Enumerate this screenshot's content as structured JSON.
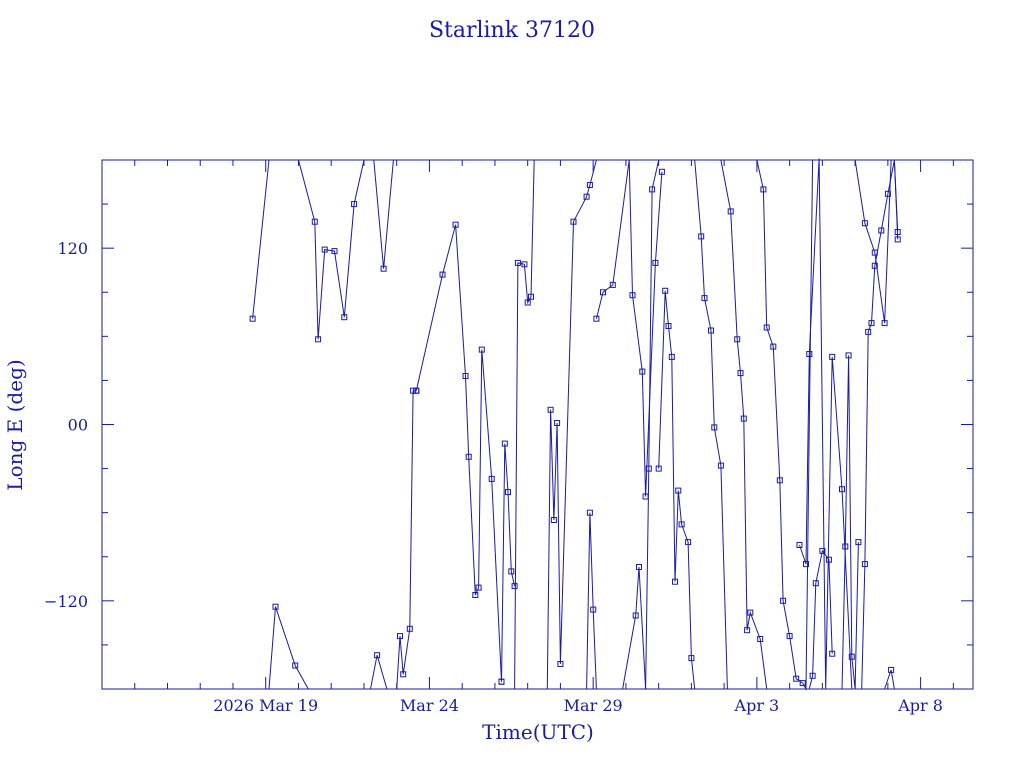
{
  "chart_data": {
    "type": "line",
    "title": "Starlink 37120",
    "xlabel": "Time(UTC)",
    "ylabel": "Long E (deg)",
    "x_unit": "days",
    "x_range": [
      14.0,
      40.6
    ],
    "ylim": [
      -180,
      180
    ],
    "y_ticks": [
      {
        "value": 120,
        "label": "120"
      },
      {
        "value": 0,
        "label": "00"
      },
      {
        "value": -120,
        "label": "−120"
      }
    ],
    "x_ticks": [
      {
        "value": 19,
        "label": "2026 Mar 19"
      },
      {
        "value": 24,
        "label": "Mar 24"
      },
      {
        "value": 29,
        "label": "Mar 29"
      },
      {
        "value": 34,
        "label": "Apr  3"
      },
      {
        "value": 39,
        "label": "Apr  8"
      }
    ],
    "line_color": "#1a1aa6",
    "series": [
      {
        "x": [
          18.6,
          19.1
        ],
        "y": [
          72,
          180
        ]
      },
      {
        "x": [
          19.1,
          19.3,
          19.9,
          20.3
        ],
        "y": [
          -180,
          -124,
          -164,
          -180
        ]
      },
      {
        "x": [
          20.0,
          20.5,
          20.6,
          20.8,
          21.1,
          21.4,
          21.7,
          22.0,
          22.3
        ],
        "y": [
          180,
          138,
          58,
          119,
          118,
          73,
          150,
          180,
          180
        ]
      },
      {
        "x": [
          22.3,
          22.6,
          22.9
        ],
        "y": [
          180,
          106,
          180
        ]
      },
      {
        "x": [
          22.2,
          22.4,
          22.7
        ],
        "y": [
          -180,
          -157,
          -180
        ]
      },
      {
        "x": [
          23.0,
          23.1,
          23.2,
          23.4,
          23.5,
          23.6
        ],
        "y": [
          -180,
          -144,
          -170,
          -139,
          23,
          23
        ]
      },
      {
        "x": [
          23.6,
          24.4,
          24.8,
          25.1,
          25.2,
          25.4,
          25.5,
          25.6,
          25.9,
          26.2
        ],
        "y": [
          23,
          102,
          136,
          33,
          -22,
          -116,
          -111,
          51,
          -37,
          -175
        ]
      },
      {
        "x": [
          26.2,
          26.3,
          26.4,
          26.5,
          26.6
        ],
        "y": [
          -175,
          -13,
          -46,
          -100,
          -110
        ]
      },
      {
        "x": [
          26.6,
          26.7,
          26.9,
          27.0,
          27.1,
          27.2,
          27.6
        ],
        "y": [
          -180,
          110,
          109,
          83,
          87,
          180,
          180
        ]
      },
      {
        "x": [
          27.6,
          27.7,
          27.8,
          27.9,
          28.0,
          28.4,
          28.8,
          28.9,
          29.1,
          29.3
        ],
        "y": [
          -180,
          10,
          -65,
          1,
          -163,
          138,
          155,
          163,
          180,
          180
        ]
      },
      {
        "x": [
          28.8,
          28.9,
          29.0,
          29.1
        ],
        "y": [
          -180,
          -60,
          -126,
          -180
        ]
      },
      {
        "x": [
          29.1,
          29.3,
          29.6,
          30.1,
          30.2,
          30.5,
          30.6,
          30.9,
          31.1
        ],
        "y": [
          72,
          90,
          95,
          180,
          88,
          36,
          -49,
          110,
          172
        ]
      },
      {
        "x": [
          29.9,
          30.3,
          30.4,
          30.6
        ],
        "y": [
          -180,
          -130,
          -97,
          -180
        ]
      },
      {
        "x": [
          30.6,
          30.7,
          30.8,
          31.0,
          31.1,
          31.2
        ],
        "y": [
          -180,
          -30,
          160,
          180,
          180,
          180
        ]
      },
      {
        "x": [
          31.0,
          31.2,
          31.3,
          31.4,
          31.5,
          31.6,
          31.7,
          31.9,
          32.0,
          32.1
        ],
        "y": [
          -30,
          91,
          67,
          46,
          -107,
          -45,
          -68,
          -80,
          -159,
          -180
        ]
      },
      {
        "x": [
          32.1,
          32.3,
          32.4,
          32.6,
          32.7,
          32.9,
          33.1
        ],
        "y": [
          180,
          128,
          86,
          64,
          -2,
          -28,
          -180
        ]
      },
      {
        "x": [
          32.9,
          33.2,
          33.4,
          33.5,
          33.6,
          33.7,
          33.8,
          34.1,
          34.3,
          34.5,
          34.6
        ],
        "y": [
          180,
          145,
          58,
          35,
          4,
          -140,
          -128,
          -146,
          -180,
          -180,
          -180
        ]
      },
      {
        "x": [
          34.0,
          34.2,
          34.3,
          34.5,
          34.7,
          34.8,
          35.0,
          35.2,
          35.4,
          35.5,
          35.7
        ],
        "y": [
          180,
          160,
          66,
          53,
          -38,
          -120,
          -144,
          -173,
          -176,
          -180,
          180
        ]
      },
      {
        "x": [
          35.3,
          35.5,
          35.6,
          35.9,
          36.1,
          36.3,
          36.6,
          36.9
        ],
        "y": [
          -82,
          -95,
          48,
          181,
          -180,
          46,
          -44,
          -180
        ]
      },
      {
        "x": [
          35.6,
          35.7,
          35.8,
          36.0,
          36.2,
          36.3
        ],
        "y": [
          -180,
          -171,
          -108,
          -86,
          -92,
          -156
        ]
      },
      {
        "x": [
          36.4,
          36.5,
          36.6
        ],
        "y": [
          180,
          180,
          180
        ]
      },
      {
        "x": [
          36.6,
          36.7,
          36.8,
          36.9,
          37.0,
          37.1
        ],
        "y": [
          -180,
          -83,
          47,
          -158,
          -180,
          -80
        ]
      },
      {
        "x": [
          37.0,
          37.3,
          37.6,
          37.9,
          38.1
        ],
        "y": [
          180,
          137,
          117,
          69,
          180
        ]
      },
      {
        "x": [
          37.2,
          37.3,
          37.4,
          37.5,
          37.6,
          37.8,
          38.0,
          38.2,
          38.3
        ],
        "y": [
          -180,
          -95,
          63,
          69,
          108,
          132,
          157,
          180,
          126
        ]
      },
      {
        "x": [
          37.9,
          38.1,
          38.2
        ],
        "y": [
          -180,
          -167,
          -180
        ]
      },
      {
        "x": [
          38.2,
          38.3
        ],
        "y": [
          180,
          131
        ]
      }
    ]
  }
}
